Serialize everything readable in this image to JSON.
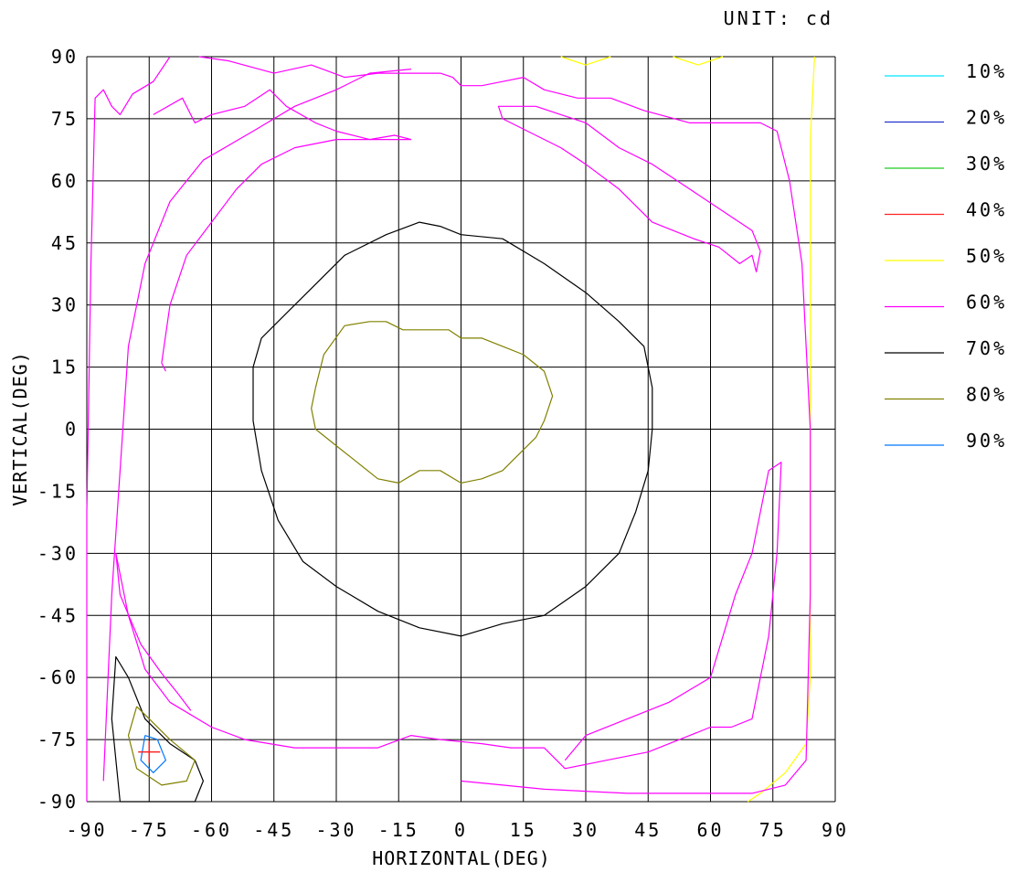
{
  "chart_data": {
    "type": "contour",
    "unit_label": "UNIT: cd",
    "xlabel": "HORIZONTAL(DEG)",
    "ylabel": "VERTICAL(DEG)",
    "xlim": [
      -90,
      90
    ],
    "ylim": [
      -90,
      90
    ],
    "x_ticks": [
      "-90",
      "-75",
      "-60",
      "-45",
      "-30",
      "-15",
      "0",
      "15",
      "30",
      "45",
      "60",
      "75",
      "90"
    ],
    "y_ticks": [
      "90",
      "75",
      "60",
      "45",
      "30",
      "15",
      "0",
      "-15",
      "-30",
      "-45",
      "-60",
      "-75",
      "-90"
    ],
    "grid": true,
    "legend_position": "right",
    "legend": [
      {
        "label": "10%",
        "color": "#00e5ff"
      },
      {
        "label": "20%",
        "color": "#2233cc"
      },
      {
        "label": "30%",
        "color": "#22cc22"
      },
      {
        "label": "40%",
        "color": "#ff2222"
      },
      {
        "label": "50%",
        "color": "#ffff00"
      },
      {
        "label": "60%",
        "color": "#ff00ff"
      },
      {
        "label": "70%",
        "color": "#000000"
      },
      {
        "label": "80%",
        "color": "#808000"
      },
      {
        "label": "90%",
        "color": "#0077ff"
      }
    ],
    "peak_marker": {
      "x": -75,
      "y": -78,
      "color": "#ff2222"
    },
    "contours": [
      {
        "level": "50%",
        "color": "#ffff00",
        "points": [
          [
            85,
            90
          ],
          [
            84,
            70
          ],
          [
            84,
            20
          ],
          [
            84,
            -30
          ],
          [
            84,
            -60
          ],
          [
            83,
            -76
          ],
          [
            78,
            -83
          ],
          [
            72,
            -88
          ],
          [
            69,
            -90
          ]
        ]
      },
      {
        "level": "50%",
        "color": "#ffff00",
        "points": [
          [
            24,
            90
          ],
          [
            30,
            88
          ],
          [
            36,
            90
          ]
        ]
      },
      {
        "level": "50%",
        "color": "#ffff00",
        "points": [
          [
            51,
            90
          ],
          [
            57,
            88
          ],
          [
            63,
            90
          ]
        ]
      },
      {
        "level": "60%",
        "color": "#ff00ff",
        "points": [
          [
            -90,
            -90
          ],
          [
            -90,
            -20
          ],
          [
            -89,
            40
          ],
          [
            -88,
            80
          ],
          [
            -86,
            82
          ],
          [
            -84,
            78
          ],
          [
            -82,
            76
          ],
          [
            -79,
            81
          ],
          [
            -74,
            84
          ],
          [
            -70,
            90
          ]
        ]
      },
      {
        "level": "60%",
        "color": "#ff00ff",
        "points": [
          [
            -63,
            90
          ],
          [
            -56,
            89
          ],
          [
            -45,
            86
          ],
          [
            -36,
            88
          ],
          [
            -28,
            85
          ],
          [
            -20,
            86
          ],
          [
            -12,
            86
          ],
          [
            -5,
            86
          ],
          [
            -2,
            85
          ],
          [
            0,
            83
          ],
          [
            5,
            83
          ],
          [
            10,
            84
          ],
          [
            15,
            85
          ],
          [
            20,
            82
          ],
          [
            28,
            80
          ],
          [
            36,
            80
          ],
          [
            44,
            77
          ],
          [
            55,
            74
          ],
          [
            65,
            74
          ],
          [
            72,
            74
          ],
          [
            76,
            72
          ],
          [
            79,
            60
          ],
          [
            82,
            40
          ],
          [
            84,
            0
          ],
          [
            84,
            -40
          ],
          [
            83,
            -80
          ],
          [
            78,
            -86
          ],
          [
            70,
            -88
          ],
          [
            40,
            -88
          ],
          [
            20,
            -87
          ],
          [
            10,
            -86
          ],
          [
            0,
            -85
          ]
        ]
      },
      {
        "level": "60%",
        "color": "#ff00ff",
        "points": [
          [
            -83,
            -30
          ],
          [
            -82,
            -40
          ],
          [
            -77,
            -52
          ],
          [
            -72,
            -59
          ],
          [
            -68,
            -64
          ],
          [
            -65,
            -68
          ]
        ]
      },
      {
        "level": "60%",
        "color": "#ff00ff",
        "points": [
          [
            -83,
            -30
          ],
          [
            -80,
            -45
          ],
          [
            -76,
            -58
          ],
          [
            -70,
            -66
          ],
          [
            -60,
            -72
          ],
          [
            -52,
            -75
          ],
          [
            -40,
            -77
          ],
          [
            -30,
            -77
          ],
          [
            -20,
            -77
          ],
          [
            -12,
            -74
          ],
          [
            -5,
            -75
          ],
          [
            5,
            -76
          ],
          [
            12,
            -77
          ],
          [
            20,
            -77
          ],
          [
            25,
            -82
          ],
          [
            35,
            -80
          ],
          [
            45,
            -78
          ],
          [
            55,
            -74
          ],
          [
            60,
            -72
          ],
          [
            65,
            -72
          ],
          [
            70,
            -70
          ],
          [
            74,
            -50
          ],
          [
            76,
            -30
          ],
          [
            77,
            -8
          ],
          [
            74,
            -10
          ],
          [
            70,
            -30
          ],
          [
            66,
            -40
          ],
          [
            60,
            -60
          ],
          [
            50,
            -66
          ],
          [
            40,
            -70
          ],
          [
            30,
            -74
          ],
          [
            25,
            -80
          ]
        ]
      },
      {
        "level": "60%",
        "color": "#ff00ff",
        "points": [
          [
            -86,
            -85
          ],
          [
            -84,
            -40
          ],
          [
            -82,
            -10
          ],
          [
            -80,
            20
          ],
          [
            -76,
            40
          ],
          [
            -70,
            55
          ],
          [
            -62,
            65
          ],
          [
            -50,
            72
          ],
          [
            -40,
            78
          ],
          [
            -30,
            82
          ],
          [
            -22,
            86
          ],
          [
            -12,
            87
          ]
        ]
      },
      {
        "level": "60%",
        "color": "#ff00ff",
        "points": [
          [
            -74,
            76
          ],
          [
            -67,
            80
          ],
          [
            -64,
            74
          ],
          [
            -60,
            76
          ],
          [
            -52,
            78
          ],
          [
            -46,
            82
          ],
          [
            -42,
            78
          ],
          [
            -35,
            74
          ],
          [
            -30,
            72
          ],
          [
            -22,
            70
          ],
          [
            -16,
            71
          ],
          [
            -12,
            70
          ]
        ]
      },
      {
        "level": "60%",
        "color": "#ff00ff",
        "points": [
          [
            -71,
            14
          ],
          [
            -72,
            16
          ],
          [
            -70,
            30
          ],
          [
            -66,
            42
          ],
          [
            -60,
            50
          ],
          [
            -54,
            58
          ],
          [
            -48,
            64
          ],
          [
            -40,
            68
          ],
          [
            -30,
            70
          ],
          [
            -20,
            70
          ],
          [
            -12,
            70
          ]
        ]
      },
      {
        "level": "60%",
        "color": "#ff00ff",
        "points": [
          [
            10,
            78
          ],
          [
            18,
            78
          ],
          [
            24,
            76
          ],
          [
            30,
            74
          ],
          [
            38,
            68
          ],
          [
            46,
            64
          ],
          [
            55,
            58
          ],
          [
            64,
            52
          ],
          [
            70,
            48
          ],
          [
            72,
            43
          ],
          [
            71,
            38
          ],
          [
            70,
            42
          ],
          [
            67,
            40
          ],
          [
            62,
            44
          ],
          [
            56,
            46
          ],
          [
            46,
            50
          ],
          [
            38,
            58
          ],
          [
            30,
            64
          ],
          [
            24,
            68
          ],
          [
            16,
            72
          ],
          [
            10,
            75
          ],
          [
            9,
            78
          ],
          [
            10,
            78
          ]
        ]
      },
      {
        "level": "70%",
        "color": "#000000",
        "points": [
          [
            -50,
            2
          ],
          [
            -50,
            15
          ],
          [
            -48,
            22
          ],
          [
            -42,
            28
          ],
          [
            -36,
            34
          ],
          [
            -28,
            42
          ],
          [
            -18,
            47
          ],
          [
            -10,
            50
          ],
          [
            -5,
            49
          ],
          [
            0,
            47
          ],
          [
            10,
            46
          ],
          [
            20,
            40
          ],
          [
            30,
            33
          ],
          [
            38,
            26
          ],
          [
            44,
            20
          ],
          [
            46,
            10
          ],
          [
            46,
            0
          ],
          [
            45,
            -10
          ],
          [
            42,
            -20
          ],
          [
            38,
            -30
          ],
          [
            30,
            -38
          ],
          [
            20,
            -45
          ],
          [
            10,
            -47
          ],
          [
            0,
            -50
          ],
          [
            -10,
            -48
          ],
          [
            -20,
            -44
          ],
          [
            -30,
            -38
          ],
          [
            -38,
            -32
          ],
          [
            -44,
            -22
          ],
          [
            -48,
            -10
          ],
          [
            -50,
            2
          ]
        ]
      },
      {
        "level": "70%",
        "color": "#000000",
        "points": [
          [
            -82,
            -90
          ],
          [
            -84,
            -70
          ],
          [
            -83,
            -55
          ],
          [
            -80,
            -60
          ],
          [
            -76,
            -70
          ],
          [
            -70,
            -76
          ],
          [
            -64,
            -80
          ],
          [
            -62,
            -85
          ],
          [
            -64,
            -90
          ],
          [
            -82,
            -90
          ]
        ]
      },
      {
        "level": "80%",
        "color": "#808000",
        "points": [
          [
            -35,
            10
          ],
          [
            -33,
            18
          ],
          [
            -28,
            25
          ],
          [
            -22,
            26
          ],
          [
            -18,
            26
          ],
          [
            -14,
            24
          ],
          [
            -8,
            24
          ],
          [
            -3,
            24
          ],
          [
            0,
            22
          ],
          [
            5,
            22
          ],
          [
            10,
            20
          ],
          [
            15,
            18
          ],
          [
            20,
            14
          ],
          [
            22,
            8
          ],
          [
            20,
            2
          ],
          [
            18,
            -2
          ],
          [
            15,
            -5
          ],
          [
            12,
            -8
          ],
          [
            10,
            -10
          ],
          [
            5,
            -12
          ],
          [
            0,
            -13
          ],
          [
            -5,
            -10
          ],
          [
            -10,
            -10
          ],
          [
            -15,
            -13
          ],
          [
            -20,
            -12
          ],
          [
            -25,
            -8
          ],
          [
            -30,
            -4
          ],
          [
            -35,
            0
          ],
          [
            -36,
            5
          ],
          [
            -35,
            10
          ]
        ]
      },
      {
        "level": "80%",
        "color": "#808000",
        "points": [
          [
            -78,
            -67
          ],
          [
            -80,
            -74
          ],
          [
            -78,
            -82
          ],
          [
            -72,
            -86
          ],
          [
            -66,
            -85
          ],
          [
            -64,
            -80
          ],
          [
            -70,
            -75
          ],
          [
            -75,
            -70
          ],
          [
            -78,
            -67
          ]
        ]
      },
      {
        "level": "90%",
        "color": "#0077ff",
        "points": [
          [
            -76,
            -74
          ],
          [
            -77,
            -80
          ],
          [
            -74,
            -83
          ],
          [
            -71,
            -80
          ],
          [
            -73,
            -75
          ],
          [
            -76,
            -74
          ]
        ]
      }
    ]
  }
}
